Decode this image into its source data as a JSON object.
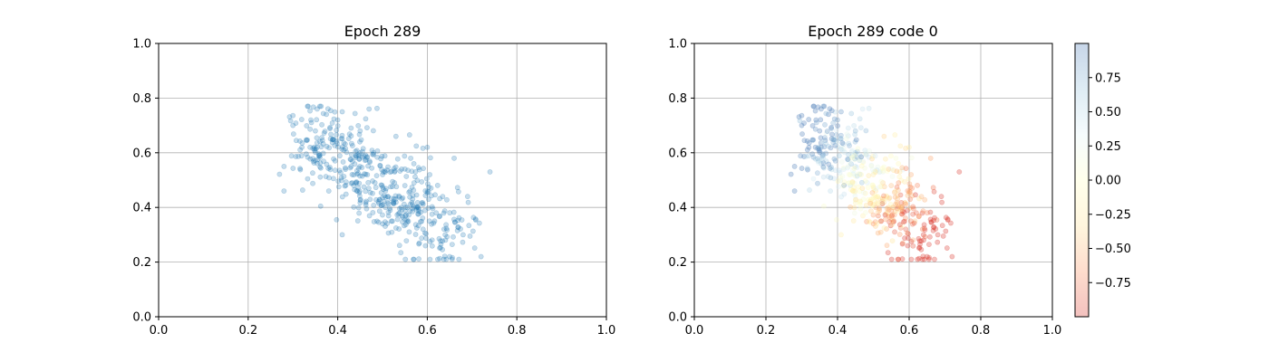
{
  "chart_data": [
    {
      "type": "scatter",
      "title": "Epoch 289",
      "xlabel": "",
      "ylabel": "",
      "xlim": [
        0,
        1
      ],
      "ylim": [
        0,
        1
      ],
      "grid": true,
      "xticks": [
        "0.0",
        "0.2",
        "0.4",
        "0.6",
        "0.8",
        "1.0"
      ],
      "yticks": [
        "0.0",
        "0.2",
        "0.4",
        "0.6",
        "0.8",
        "1.0"
      ],
      "point_color": "#1f77b4",
      "point_alpha": 0.25,
      "n_points": 520,
      "cloud": {
        "x_range": [
          0.27,
          0.74
        ],
        "y_range": [
          0.21,
          0.77
        ],
        "sample_points": [
          [
            0.28,
            0.55
          ],
          [
            0.28,
            0.46
          ],
          [
            0.3,
            0.7
          ],
          [
            0.32,
            0.62
          ],
          [
            0.34,
            0.72
          ],
          [
            0.35,
            0.68
          ],
          [
            0.36,
            0.77
          ],
          [
            0.38,
            0.46
          ],
          [
            0.39,
            0.65
          ],
          [
            0.4,
            0.72
          ],
          [
            0.41,
            0.75
          ],
          [
            0.41,
            0.3
          ],
          [
            0.43,
            0.55
          ],
          [
            0.45,
            0.68
          ],
          [
            0.47,
            0.76
          ],
          [
            0.48,
            0.6
          ],
          [
            0.5,
            0.52
          ],
          [
            0.52,
            0.35
          ],
          [
            0.53,
            0.66
          ],
          [
            0.55,
            0.48
          ],
          [
            0.57,
            0.21
          ],
          [
            0.57,
            0.56
          ],
          [
            0.58,
            0.4
          ],
          [
            0.6,
            0.62
          ],
          [
            0.62,
            0.38
          ],
          [
            0.64,
            0.3
          ],
          [
            0.65,
            0.22
          ],
          [
            0.66,
            0.58
          ],
          [
            0.68,
            0.3
          ],
          [
            0.69,
            0.44
          ],
          [
            0.72,
            0.22
          ],
          [
            0.74,
            0.53
          ]
        ]
      }
    },
    {
      "type": "scatter",
      "title": "Epoch 289 code 0",
      "xlabel": "",
      "ylabel": "",
      "xlim": [
        0,
        1
      ],
      "ylim": [
        0,
        1
      ],
      "grid": true,
      "xticks": [
        "0.0",
        "0.2",
        "0.4",
        "0.6",
        "0.8",
        "1.0"
      ],
      "yticks": [
        "0.0",
        "0.2",
        "0.4",
        "0.6",
        "0.8",
        "1.0"
      ],
      "point_alpha": 0.3,
      "colormap": "RdYlBu",
      "colorbar": {
        "range": [
          -1,
          1
        ],
        "ticks": [
          "0.75",
          "0.50",
          "0.25",
          "0.00",
          "−0.25",
          "−0.50",
          "−0.75"
        ],
        "tick_values": [
          0.75,
          0.5,
          0.25,
          0.0,
          -0.25,
          -0.5,
          -0.75
        ],
        "colors": [
          "#d73027",
          "#fc8d59",
          "#fee090",
          "#ffffbf",
          "#e0f3f8",
          "#91bfdb",
          "#4575b4"
        ]
      },
      "color_pattern": "negative values (red) at lower-right of cloud, positive values (blue) at upper-left, near-zero (yellow/white) in middle"
    }
  ]
}
